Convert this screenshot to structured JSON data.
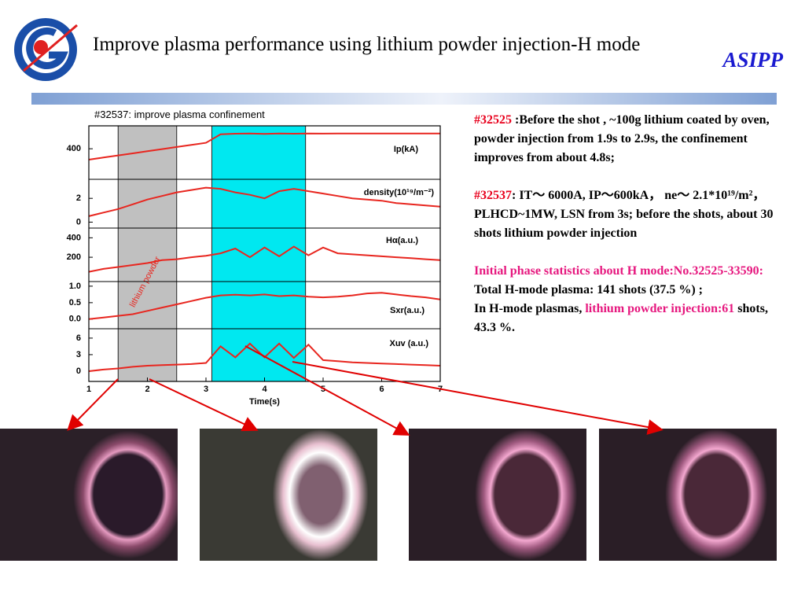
{
  "header": {
    "title": "Improve plasma performance using lithium powder injection-H mode",
    "brand": "ASIPP"
  },
  "figure": {
    "title": "#32537: improve plasma confinement",
    "x_label": "Time(s)",
    "xlim": [
      1,
      7
    ],
    "xticks": [
      1,
      2,
      3,
      4,
      5,
      6,
      7
    ],
    "x": [
      1,
      1.25,
      1.5,
      1.75,
      2,
      2.25,
      2.5,
      2.75,
      3,
      3.25,
      3.5,
      3.75,
      4,
      4.25,
      4.5,
      4.75,
      5,
      5.25,
      5.5,
      5.75,
      6,
      6.25,
      6.5,
      6.75,
      7
    ],
    "line_color": "#e8261f",
    "shaded_regions": [
      {
        "label": "lithium powder",
        "from": 1.5,
        "to": 2.5,
        "color": "#c0c0c0"
      },
      {
        "from": 3.1,
        "to": 4.7,
        "color": "#00e8f0"
      }
    ],
    "panels": [
      {
        "name": "Ip(kA)",
        "ylim": [
          0,
          700
        ],
        "yticks": [
          400
        ],
        "values": [
          257,
          285,
          313,
          340,
          368,
          395,
          423,
          450,
          478,
          590,
          597,
          600,
          595,
          600,
          597,
          600,
          598,
          600,
          600,
          600,
          600,
          600,
          600,
          600,
          600
        ]
      },
      {
        "name": "density(10¹⁹/m⁻²)",
        "ylim": [
          -0.5,
          3.6
        ],
        "yticks": [
          2,
          0
        ],
        "values": [
          0.5,
          0.8,
          1.1,
          1.5,
          1.9,
          2.2,
          2.5,
          2.7,
          2.9,
          2.8,
          2.5,
          2.3,
          2.0,
          2.6,
          2.8,
          2.6,
          2.4,
          2.2,
          2.0,
          1.9,
          1.8,
          1.6,
          1.5,
          1.4,
          1.3
        ]
      },
      {
        "name": "Hα(a.u.)",
        "ylim": [
          -50,
          500
        ],
        "yticks": [
          400,
          200
        ],
        "values": [
          50,
          80,
          100,
          120,
          140,
          170,
          180,
          200,
          215,
          240,
          290,
          200,
          300,
          210,
          310,
          220,
          300,
          240,
          230,
          220,
          210,
          200,
          190,
          180,
          170
        ]
      },
      {
        "name": "Sxr(a.u.)",
        "ylim": [
          -0.29,
          1.14
        ],
        "yticks": [
          {
            "value": 1,
            "label": "1.0"
          },
          0.5,
          {
            "value": 0,
            "label": "0.0"
          }
        ],
        "values": [
          0.0,
          0.05,
          0.1,
          0.15,
          0.25,
          0.35,
          0.45,
          0.55,
          0.65,
          0.72,
          0.74,
          0.72,
          0.75,
          0.7,
          0.72,
          0.68,
          0.66,
          0.68,
          0.72,
          0.78,
          0.8,
          0.75,
          0.7,
          0.66,
          0.6
        ]
      },
      {
        "name": "Xuv (a.u.)",
        "ylim": [
          -1.86,
          7.7
        ],
        "yticks": [
          6,
          3,
          0
        ],
        "values": [
          0.0,
          0.3,
          0.5,
          0.8,
          1.0,
          1.1,
          1.2,
          1.3,
          1.5,
          4.5,
          2.5,
          5.0,
          2.5,
          5.0,
          2.4,
          4.8,
          2.0,
          1.8,
          1.6,
          1.5,
          1.4,
          1.3,
          1.2,
          1.1,
          1.0
        ]
      }
    ]
  },
  "notes": [
    {
      "runs": [
        {
          "text": "#32525",
          "color": "#e8001c"
        },
        {
          "text": " :Before the shot , ~100g lithium coated by oven, powder injection from 1.9s to 2.9s, the confinement improves from about 4.8s;"
        }
      ]
    },
    {
      "runs": [
        {
          "text": "#32537",
          "color": "#e8001c"
        },
        {
          "text": ": IT～ 6000A, IP～600kA，  ne～ 2.1*10¹⁹/m²，  PLHCD~1MW, LSN from 3s; before the shots, about 30 shots lithium powder injection"
        }
      ]
    },
    {
      "runs": [
        {
          "text": "Initial phase statistics about H mode:No.32525-33590:",
          "color": "#e6177e"
        }
      ]
    },
    {
      "runs": [
        {
          "text": "Total  H-mode plasma: 141 shots (37.5 %) ;"
        }
      ]
    },
    {
      "runs": [
        {
          "text": "In H-mode plasmas, "
        },
        {
          "text": "lithium powder injection:61",
          "color": "#e6177e"
        },
        {
          "text": " shots,  43.3 %."
        }
      ]
    }
  ]
}
